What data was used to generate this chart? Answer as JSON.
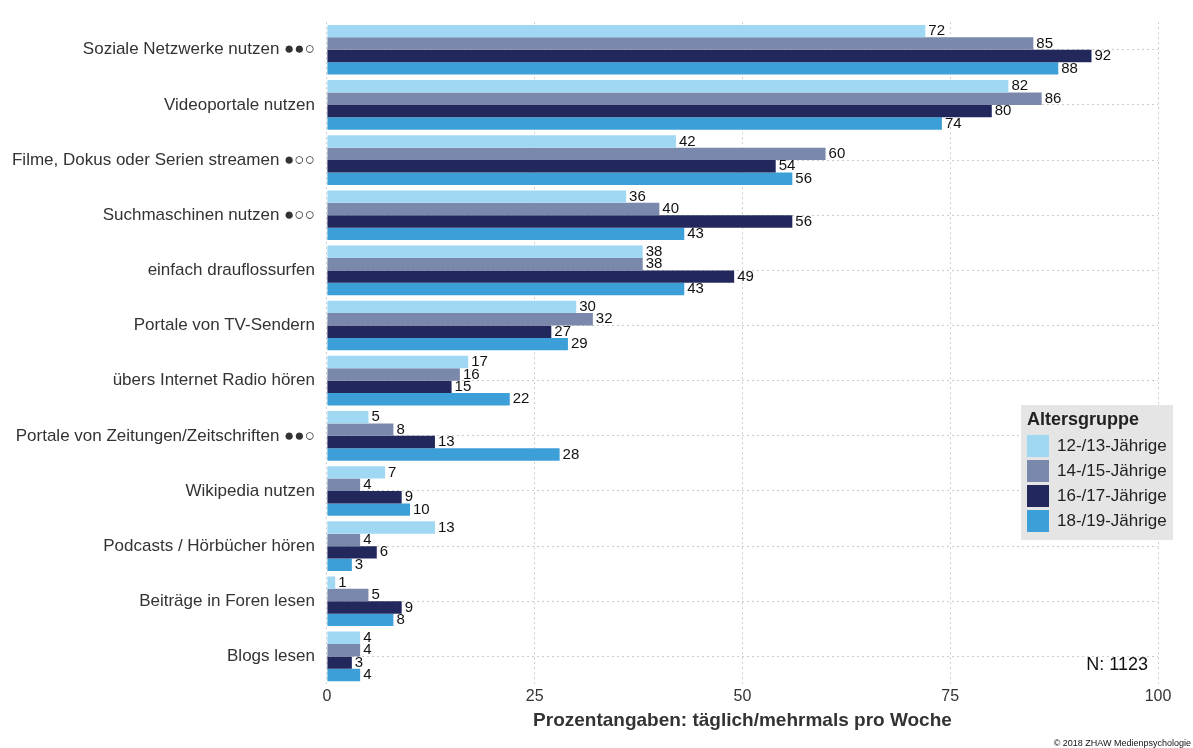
{
  "chart_data": {
    "type": "bar",
    "orientation": "horizontal",
    "xlabel": "Prozentangaben: täglich/mehrmals pro Woche",
    "legend_title": "Altersgruppe",
    "categories": [
      "Soziale Netzwerke nutzen ●●○",
      "Videoportale nutzen",
      "Filme, Dokus oder Serien streamen ●○○",
      "Suchmaschinen nutzen ●○○",
      "einfach drauflossurfen",
      "Portale von TV-Sendern",
      "übers Internet Radio hören",
      "Portale von Zeitungen/Zeitschriften ●●○",
      "Wikipedia nutzen",
      "Podcasts / Hörbücher hören",
      "Beiträge in Foren lesen",
      "Blogs lesen"
    ],
    "series": [
      {
        "name": "12-/13-Jährige",
        "color": "#a0d8f4",
        "values": [
          72,
          82,
          42,
          36,
          38,
          30,
          17,
          5,
          7,
          13,
          1,
          4
        ]
      },
      {
        "name": "14-/15-Jährige",
        "color": "#7a88ab",
        "values": [
          85,
          86,
          60,
          40,
          38,
          32,
          16,
          8,
          4,
          4,
          5,
          4
        ]
      },
      {
        "name": "16-/17-Jährige",
        "color": "#22285c",
        "values": [
          92,
          80,
          54,
          56,
          49,
          27,
          15,
          13,
          9,
          6,
          9,
          3
        ]
      },
      {
        "name": "18-/19-Jährige",
        "color": "#3d9fd8",
        "values": [
          88,
          74,
          56,
          43,
          43,
          29,
          22,
          28,
          10,
          3,
          8,
          4
        ]
      }
    ],
    "xlim": [
      0,
      100
    ],
    "xticks": [
      0,
      25,
      50,
      75,
      100
    ],
    "grid": true,
    "legend": "right",
    "data_labels": true,
    "annotations": [
      "N: 1123",
      "© 2018 ZHAW Medienpsychologie"
    ]
  }
}
